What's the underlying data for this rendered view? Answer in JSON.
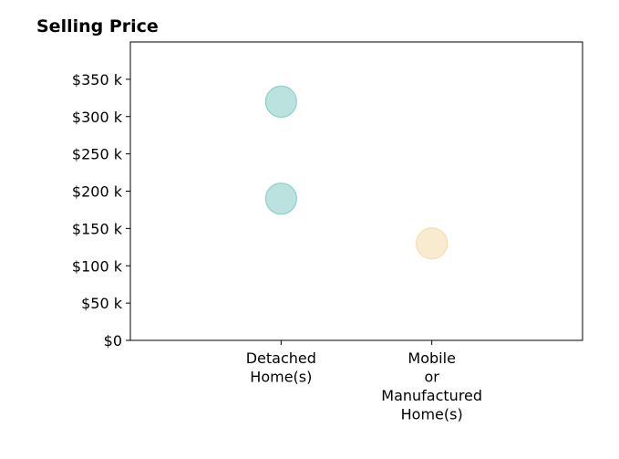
{
  "chart_data": {
    "type": "scatter",
    "title": "Selling Price",
    "xlabel": "",
    "ylabel": "",
    "categories": [
      [
        "Detached",
        "Home(s)"
      ],
      [
        "Mobile",
        "or",
        "Manufactured",
        "Home(s)"
      ]
    ],
    "x_range": [
      -1,
      2
    ],
    "ylim": [
      0,
      400000
    ],
    "y_ticks": [
      0,
      50000,
      100000,
      150000,
      200000,
      250000,
      300000,
      350000
    ],
    "y_tick_labels": [
      "$0",
      "$50 k",
      "$100 k",
      "$150 k",
      "$200 k",
      "$250 k",
      "$300 k",
      "$350 k"
    ],
    "grid": false,
    "points": [
      {
        "category": "Detached Home(s)",
        "y": 320000,
        "color": "#8ecfc9"
      },
      {
        "category": "Detached Home(s)",
        "y": 190000,
        "color": "#8ecfc9"
      },
      {
        "category": "Mobile or Manufactured Home(s)",
        "y": 130000,
        "color": "#f5ddb0"
      }
    ]
  }
}
